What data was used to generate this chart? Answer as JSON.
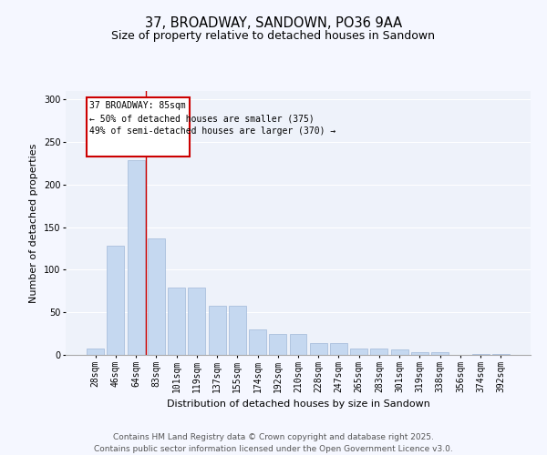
{
  "title_line1": "37, BROADWAY, SANDOWN, PO36 9AA",
  "title_line2": "Size of property relative to detached houses in Sandown",
  "xlabel": "Distribution of detached houses by size in Sandown",
  "ylabel": "Number of detached properties",
  "categories": [
    "28sqm",
    "46sqm",
    "64sqm",
    "83sqm",
    "101sqm",
    "119sqm",
    "137sqm",
    "155sqm",
    "174sqm",
    "192sqm",
    "210sqm",
    "228sqm",
    "247sqm",
    "265sqm",
    "283sqm",
    "301sqm",
    "319sqm",
    "338sqm",
    "356sqm",
    "374sqm",
    "392sqm"
  ],
  "values": [
    7,
    128,
    229,
    137,
    79,
    79,
    58,
    58,
    30,
    25,
    25,
    14,
    14,
    7,
    7,
    6,
    3,
    3,
    0,
    1,
    1
  ],
  "bar_color": "#c5d8f0",
  "bar_edgecolor": "#a0b8d8",
  "vline_x": 2.5,
  "vline_color": "#cc0000",
  "annotation_box_text": "37 BROADWAY: 85sqm\n← 50% of detached houses are smaller (375)\n49% of semi-detached houses are larger (370) →",
  "annotation_box_color": "#cc0000",
  "annotation_text_color": "#000000",
  "ylim": [
    0,
    310
  ],
  "yticks": [
    0,
    50,
    100,
    150,
    200,
    250,
    300
  ],
  "background_color": "#eef2fa",
  "grid_color": "#ffffff",
  "footer_line1": "Contains HM Land Registry data © Crown copyright and database right 2025.",
  "footer_line2": "Contains public sector information licensed under the Open Government Licence v3.0.",
  "title_fontsize": 10.5,
  "subtitle_fontsize": 9,
  "axis_label_fontsize": 8,
  "tick_fontsize": 7,
  "footer_fontsize": 6.5,
  "ann_fontsize": 7
}
